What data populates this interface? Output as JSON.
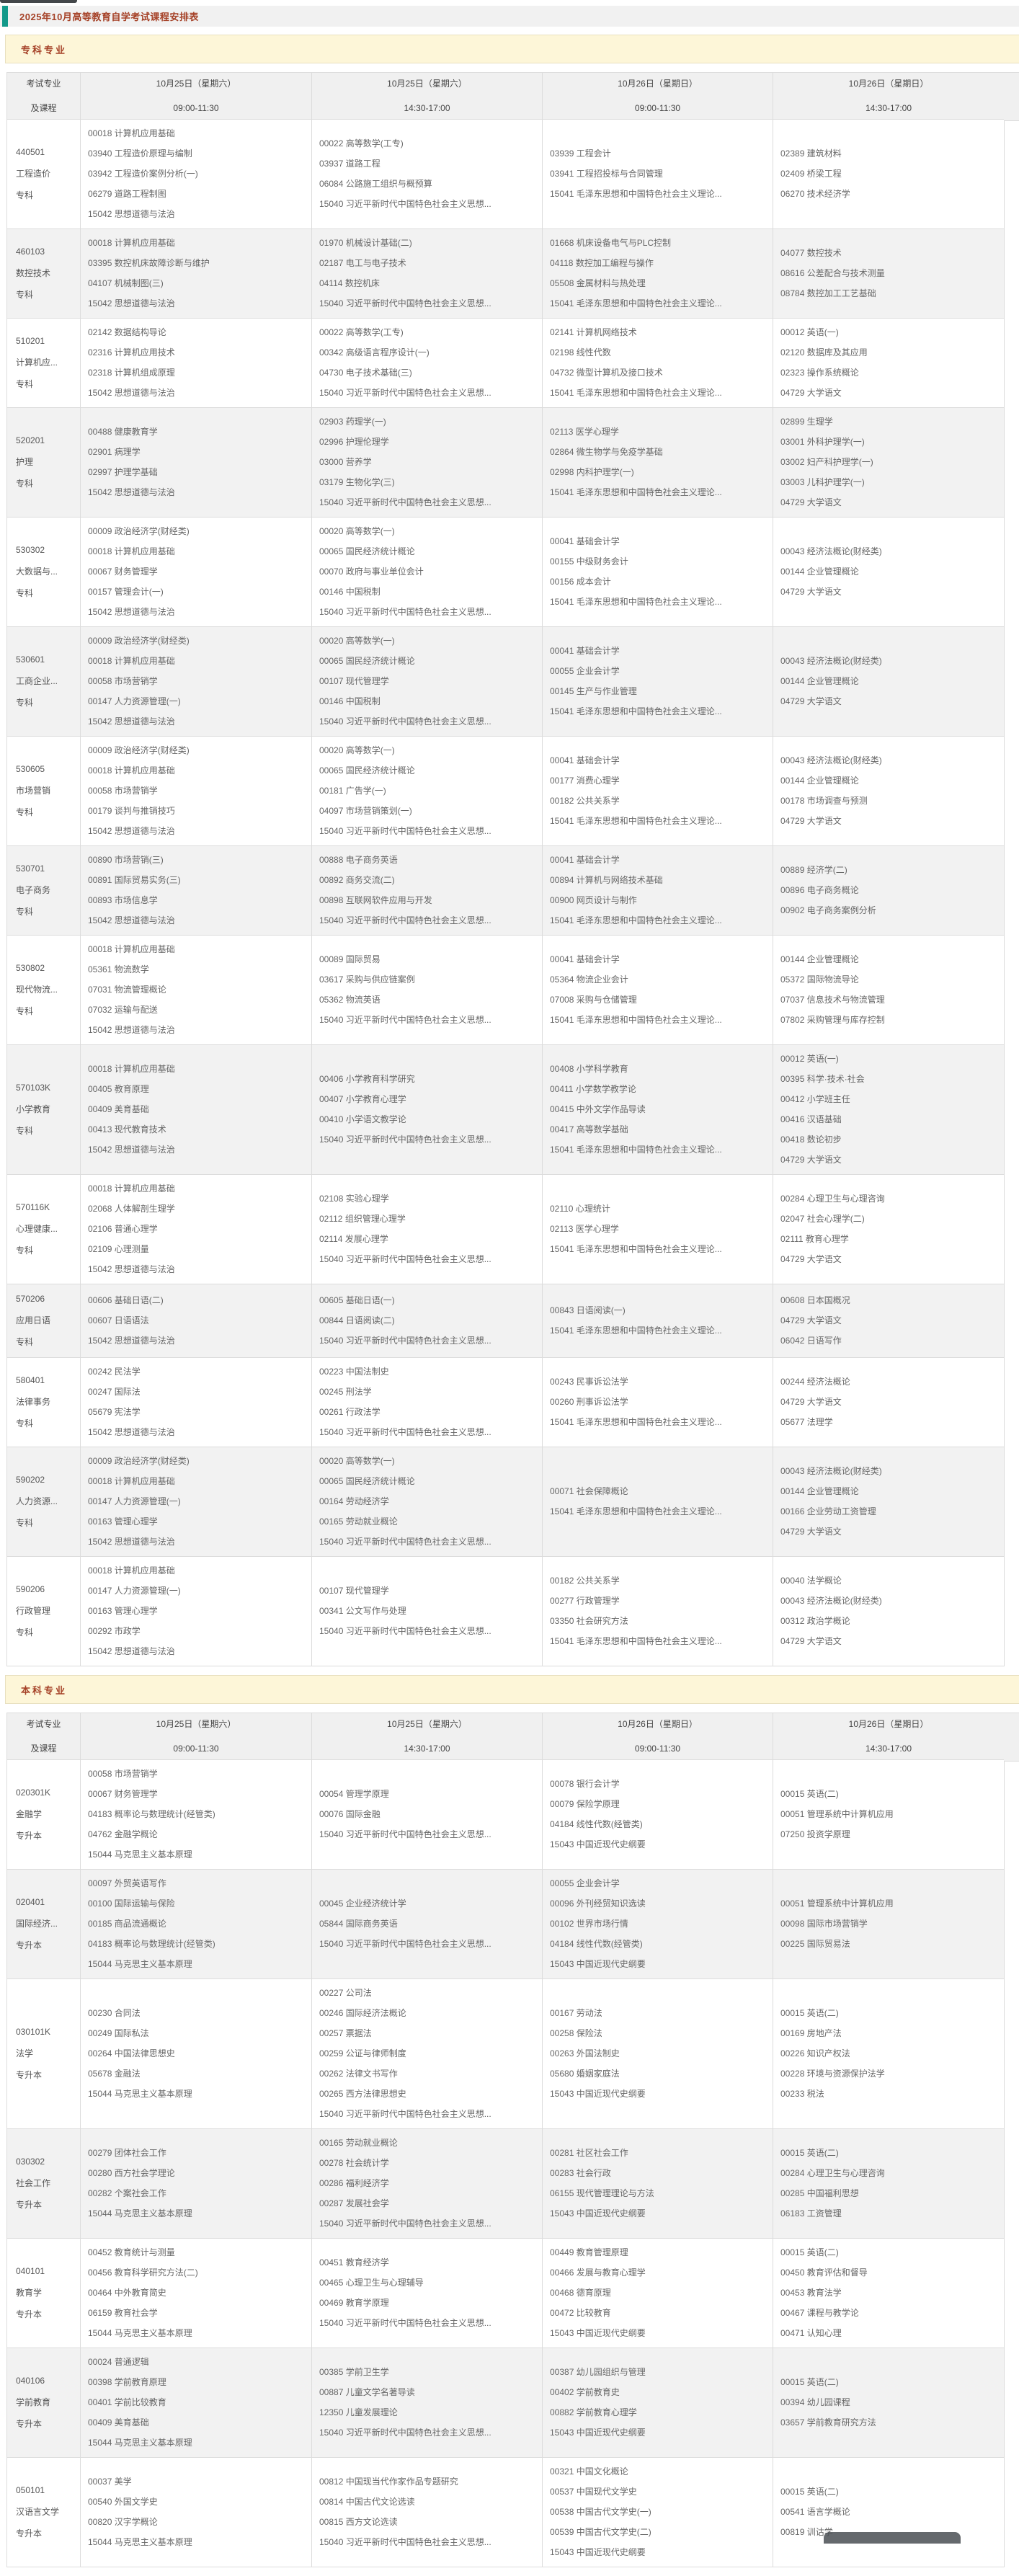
{
  "page": {
    "title": "2025年10月高等教育自学考试课程安排表"
  },
  "colors": {
    "accent_teal": "#12998a",
    "title_red": "#a54127",
    "section_bar_bg": "#fdf6d8",
    "table_header_bg": "#f0f0f0",
    "row_stripe_bg": "#f2f2f2"
  },
  "table_header": {
    "col1_line1": "考试专业",
    "col1_line2": "及课程",
    "sessions": [
      {
        "date": "10月25日（星期六）",
        "time": "09:00-11:30"
      },
      {
        "date": "10月25日（星期六）",
        "time": "14:30-17:00"
      },
      {
        "date": "10月26日（星期日）",
        "time": "09:00-11:30"
      },
      {
        "date": "10月26日（星期日）",
        "time": "14:30-17:00"
      }
    ]
  },
  "sections": [
    {
      "label": "专科专业",
      "rows": [
        {
          "code": "440501",
          "major": "工程造价",
          "level": "专科",
          "sessions": [
            [
              "00018 计算机应用基础",
              "03940 工程造价原理与编制",
              "03942 工程造价案例分析(一)",
              "06279 道路工程制图",
              "15042 思想道德与法治"
            ],
            [
              "00022 高等数学(工专)",
              "03937 道路工程",
              "06084 公路施工组织与概预算",
              "15040 习近平新时代中国特色社会主义思想..."
            ],
            [
              "03939 工程会计",
              "03941 工程招投标与合同管理",
              "15041 毛泽东思想和中国特色社会主义理论..."
            ],
            [
              "02389 建筑材料",
              "02409 桥梁工程",
              "06270 技术经济学"
            ]
          ]
        },
        {
          "code": "460103",
          "major": "数控技术",
          "level": "专科",
          "sessions": [
            [
              "00018 计算机应用基础",
              "03395 数控机床故障诊断与维护",
              "04107 机械制图(三)",
              "15042 思想道德与法治"
            ],
            [
              "01970 机械设计基础(二)",
              "02187 电工与电子技术",
              "04114 数控机床",
              "15040 习近平新时代中国特色社会主义思想..."
            ],
            [
              "01668 机床设备电气与PLC控制",
              "04118 数控加工编程与操作",
              "05508 金属材料与热处理",
              "15041 毛泽东思想和中国特色社会主义理论..."
            ],
            [
              "04077 数控技术",
              "08616 公差配合与技术测量",
              "08784 数控加工工艺基础"
            ]
          ]
        },
        {
          "code": "510201",
          "major": "计算机应...",
          "level": "专科",
          "sessions": [
            [
              "02142 数据结构导论",
              "02316 计算机应用技术",
              "02318 计算机组成原理",
              "15042 思想道德与法治"
            ],
            [
              "00022 高等数学(工专)",
              "00342 高级语言程序设计(一)",
              "04730 电子技术基础(三)",
              "15040 习近平新时代中国特色社会主义思想..."
            ],
            [
              "02141 计算机网络技术",
              "02198 线性代数",
              "04732 微型计算机及接口技术",
              "15041 毛泽东思想和中国特色社会主义理论..."
            ],
            [
              "00012 英语(一)",
              "02120 数据库及其应用",
              "02323 操作系统概论",
              "04729 大学语文"
            ]
          ]
        },
        {
          "code": "520201",
          "major": "护理",
          "level": "专科",
          "sessions": [
            [
              "00488 健康教育学",
              "02901 病理学",
              "02997 护理学基础",
              "15042 思想道德与法治"
            ],
            [
              "02903 药理学(一)",
              "02996 护理伦理学",
              "03000 营养学",
              "03179 生物化学(三)",
              "15040 习近平新时代中国特色社会主义思想..."
            ],
            [
              "02113 医学心理学",
              "02864 微生物学与免疫学基础",
              "02998 内科护理学(一)",
              "15041 毛泽东思想和中国特色社会主义理论..."
            ],
            [
              "02899 生理学",
              "03001 外科护理学(一)",
              "03002 妇产科护理学(一)",
              "03003 儿科护理学(一)",
              "04729 大学语文"
            ]
          ]
        },
        {
          "code": "530302",
          "major": "大数据与...",
          "level": "专科",
          "sessions": [
            [
              "00009 政治经济学(财经类)",
              "00018 计算机应用基础",
              "00067 财务管理学",
              "00157 管理会计(一)",
              "15042 思想道德与法治"
            ],
            [
              "00020 高等数学(一)",
              "00065 国民经济统计概论",
              "00070 政府与事业单位会计",
              "00146 中国税制",
              "15040 习近平新时代中国特色社会主义思想..."
            ],
            [
              "00041 基础会计学",
              "00155 中级财务会计",
              "00156 成本会计",
              "15041 毛泽东思想和中国特色社会主义理论..."
            ],
            [
              "00043 经济法概论(财经类)",
              "00144 企业管理概论",
              "04729 大学语文"
            ]
          ]
        },
        {
          "code": "530601",
          "major": "工商企业...",
          "level": "专科",
          "sessions": [
            [
              "00009 政治经济学(财经类)",
              "00018 计算机应用基础",
              "00058 市场营销学",
              "00147 人力资源管理(一)",
              "15042 思想道德与法治"
            ],
            [
              "00020 高等数学(一)",
              "00065 国民经济统计概论",
              "00107 现代管理学",
              "00146 中国税制",
              "15040 习近平新时代中国特色社会主义思想..."
            ],
            [
              "00041 基础会计学",
              "00055 企业会计学",
              "00145 生产与作业管理",
              "15041 毛泽东思想和中国特色社会主义理论..."
            ],
            [
              "00043 经济法概论(财经类)",
              "00144 企业管理概论",
              "04729 大学语文"
            ]
          ]
        },
        {
          "code": "530605",
          "major": "市场营销",
          "level": "专科",
          "sessions": [
            [
              "00009 政治经济学(财经类)",
              "00018 计算机应用基础",
              "00058 市场营销学",
              "00179 谈判与推销技巧",
              "15042 思想道德与法治"
            ],
            [
              "00020 高等数学(一)",
              "00065 国民经济统计概论",
              "00181 广告学(一)",
              "04097 市场营销策划(一)",
              "15040 习近平新时代中国特色社会主义思想..."
            ],
            [
              "00041 基础会计学",
              "00177 消费心理学",
              "00182 公共关系学",
              "15041 毛泽东思想和中国特色社会主义理论..."
            ],
            [
              "00043 经济法概论(财经类)",
              "00144 企业管理概论",
              "00178 市场调查与预测",
              "04729 大学语文"
            ]
          ]
        },
        {
          "code": "530701",
          "major": "电子商务",
          "level": "专科",
          "sessions": [
            [
              "00890 市场营销(三)",
              "00891 国际贸易实务(三)",
              "00893 市场信息学",
              "15042 思想道德与法治"
            ],
            [
              "00888 电子商务英语",
              "00892 商务交流(二)",
              "00898 互联网软件应用与开发",
              "15040 习近平新时代中国特色社会主义思想..."
            ],
            [
              "00041 基础会计学",
              "00894 计算机与网络技术基础",
              "00900 网页设计与制作",
              "15041 毛泽东思想和中国特色社会主义理论..."
            ],
            [
              "00889 经济学(二)",
              "00896 电子商务概论",
              "00902 电子商务案例分析"
            ]
          ]
        },
        {
          "code": "530802",
          "major": "现代物流...",
          "level": "专科",
          "sessions": [
            [
              "00018 计算机应用基础",
              "05361 物流数学",
              "07031 物流管理概论",
              "07032 运输与配送",
              "15042 思想道德与法治"
            ],
            [
              "00089 国际贸易",
              "03617 采购与供应链案例",
              "05362 物流英语",
              "15040 习近平新时代中国特色社会主义思想..."
            ],
            [
              "00041 基础会计学",
              "05364 物流企业会计",
              "07008 采购与仓储管理",
              "15041 毛泽东思想和中国特色社会主义理论..."
            ],
            [
              "00144 企业管理概论",
              "05372 国际物流导论",
              "07037 信息技术与物流管理",
              "07802 采购管理与库存控制"
            ]
          ]
        },
        {
          "code": "570103K",
          "major": "小学教育",
          "level": "专科",
          "sessions": [
            [
              "00018 计算机应用基础",
              "00405 教育原理",
              "00409 美育基础",
              "00413 现代教育技术",
              "15042 思想道德与法治"
            ],
            [
              "00406 小学教育科学研究",
              "00407 小学教育心理学",
              "00410 小学语文教学论",
              "15040 习近平新时代中国特色社会主义思想..."
            ],
            [
              "00408 小学科学教育",
              "00411 小学数学教学论",
              "00415 中外文学作品导读",
              "00417 高等数学基础",
              "15041 毛泽东思想和中国特色社会主义理论..."
            ],
            [
              "00012 英语(一)",
              "00395 科学·技术·社会",
              "00412 小学班主任",
              "00416 汉语基础",
              "00418 数论初步",
              "04729 大学语文"
            ]
          ]
        },
        {
          "code": "570116K",
          "major": "心理健康...",
          "level": "专科",
          "sessions": [
            [
              "00018 计算机应用基础",
              "02068 人体解剖生理学",
              "02106 普通心理学",
              "02109 心理测量",
              "15042 思想道德与法治"
            ],
            [
              "02108 实验心理学",
              "02112 组织管理心理学",
              "02114 发展心理学",
              "15040 习近平新时代中国特色社会主义思想..."
            ],
            [
              "02110 心理统计",
              "02113 医学心理学",
              "15041 毛泽东思想和中国特色社会主义理论..."
            ],
            [
              "00284 心理卫生与心理咨询",
              "02047 社会心理学(二)",
              "02111 教育心理学",
              "04729 大学语文"
            ]
          ]
        },
        {
          "code": "570206",
          "major": "应用日语",
          "level": "专科",
          "sessions": [
            [
              "00606 基础日语(二)",
              "00607 日语语法",
              "15042 思想道德与法治"
            ],
            [
              "00605 基础日语(一)",
              "00844 日语阅读(二)",
              "15040 习近平新时代中国特色社会主义思想..."
            ],
            [
              "00843 日语阅读(一)",
              "15041 毛泽东思想和中国特色社会主义理论..."
            ],
            [
              "00608 日本国概况",
              "04729 大学语文",
              "06042 日语写作"
            ]
          ]
        },
        {
          "code": "580401",
          "major": "法律事务",
          "level": "专科",
          "sessions": [
            [
              "00242 民法学",
              "00247 国际法",
              "05679 宪法学",
              "15042 思想道德与法治"
            ],
            [
              "00223 中国法制史",
              "00245 刑法学",
              "00261 行政法学",
              "15040 习近平新时代中国特色社会主义思想..."
            ],
            [
              "00243 民事诉讼法学",
              "00260 刑事诉讼法学",
              "15041 毛泽东思想和中国特色社会主义理论..."
            ],
            [
              "00244 经济法概论",
              "04729 大学语文",
              "05677 法理学"
            ]
          ]
        },
        {
          "code": "590202",
          "major": "人力资源...",
          "level": "专科",
          "sessions": [
            [
              "00009 政治经济学(财经类)",
              "00018 计算机应用基础",
              "00147 人力资源管理(一)",
              "00163 管理心理学",
              "15042 思想道德与法治"
            ],
            [
              "00020 高等数学(一)",
              "00065 国民经济统计概论",
              "00164 劳动经济学",
              "00165 劳动就业概论",
              "15040 习近平新时代中国特色社会主义思想..."
            ],
            [
              "00071 社会保障概论",
              "15041 毛泽东思想和中国特色社会主义理论..."
            ],
            [
              "00043 经济法概论(财经类)",
              "00144 企业管理概论",
              "00166 企业劳动工资管理",
              "04729 大学语文"
            ]
          ]
        },
        {
          "code": "590206",
          "major": "行政管理",
          "level": "专科",
          "sessions": [
            [
              "00018 计算机应用基础",
              "00147 人力资源管理(一)",
              "00163 管理心理学",
              "00292 市政学",
              "15042 思想道德与法治"
            ],
            [
              "00107 现代管理学",
              "00341 公文写作与处理",
              "15040 习近平新时代中国特色社会主义思想..."
            ],
            [
              "00182 公共关系学",
              "00277 行政管理学",
              "03350 社会研究方法",
              "15041 毛泽东思想和中国特色社会主义理论..."
            ],
            [
              "00040 法学概论",
              "00043 经济法概论(财经类)",
              "00312 政治学概论",
              "04729 大学语文"
            ]
          ]
        }
      ]
    },
    {
      "label": "本科专业",
      "rows": [
        {
          "code": "020301K",
          "major": "金融学",
          "level": "专升本",
          "sessions": [
            [
              "00058 市场营销学",
              "00067 财务管理学",
              "04183 概率论与数理统计(经管类)",
              "04762 金融学概论",
              "15044 马克思主义基本原理"
            ],
            [
              "00054 管理学原理",
              "00076 国际金融",
              "15040 习近平新时代中国特色社会主义思想..."
            ],
            [
              "00078 银行会计学",
              "00079 保险学原理",
              "04184 线性代数(经管类)",
              "15043 中国近现代史纲要"
            ],
            [
              "00015 英语(二)",
              "00051 管理系统中计算机应用",
              "07250 投资学原理"
            ]
          ]
        },
        {
          "code": "020401",
          "major": "国际经济...",
          "level": "专升本",
          "sessions": [
            [
              "00097 外贸英语写作",
              "00100 国际运输与保险",
              "00185 商品流通概论",
              "04183 概率论与数理统计(经管类)",
              "15044 马克思主义基本原理"
            ],
            [
              "00045 企业经济统计学",
              "05844 国际商务英语",
              "15040 习近平新时代中国特色社会主义思想..."
            ],
            [
              "00055 企业会计学",
              "00096 外刊经贸知识选读",
              "00102 世界市场行情",
              "04184 线性代数(经管类)",
              "15043 中国近现代史纲要"
            ],
            [
              "00051 管理系统中计算机应用",
              "00098 国际市场营销学",
              "00225 国际贸易法"
            ]
          ]
        },
        {
          "code": "030101K",
          "major": "法学",
          "level": "专升本",
          "sessions": [
            [
              "00230 合同法",
              "00249 国际私法",
              "00264 中国法律思想史",
              "05678 金融法",
              "15044 马克思主义基本原理"
            ],
            [
              "00227 公司法",
              "00246 国际经济法概论",
              "00257 票据法",
              "00259 公证与律师制度",
              "00262 法律文书写作",
              "00265 西方法律思想史",
              "15040 习近平新时代中国特色社会主义思想..."
            ],
            [
              "00167 劳动法",
              "00258 保险法",
              "00263 外国法制史",
              "05680 婚姻家庭法",
              "15043 中国近现代史纲要"
            ],
            [
              "00015 英语(二)",
              "00169 房地产法",
              "00226 知识产权法",
              "00228 环境与资源保护法学",
              "00233 税法"
            ]
          ]
        },
        {
          "code": "030302",
          "major": "社会工作",
          "level": "专升本",
          "sessions": [
            [
              "00279 团体社会工作",
              "00280 西方社会学理论",
              "00282 个案社会工作",
              "15044 马克思主义基本原理"
            ],
            [
              "00165 劳动就业概论",
              "00278 社会统计学",
              "00286 福利经济学",
              "00287 发展社会学",
              "15040 习近平新时代中国特色社会主义思想..."
            ],
            [
              "00281 社区社会工作",
              "00283 社会行政",
              "06155 现代管理理论与方法",
              "15043 中国近现代史纲要"
            ],
            [
              "00015 英语(二)",
              "00284 心理卫生与心理咨询",
              "00285 中国福利思想",
              "06183 工资管理"
            ]
          ]
        },
        {
          "code": "040101",
          "major": "教育学",
          "level": "专升本",
          "sessions": [
            [
              "00452 教育统计与测量",
              "00456 教育科学研究方法(二)",
              "00464 中外教育简史",
              "06159 教育社会学",
              "15044 马克思主义基本原理"
            ],
            [
              "00451 教育经济学",
              "00465 心理卫生与心理辅导",
              "00469 教育学原理",
              "15040 习近平新时代中国特色社会主义思想..."
            ],
            [
              "00449 教育管理原理",
              "00466 发展与教育心理学",
              "00468 德育原理",
              "00472 比较教育",
              "15043 中国近现代史纲要"
            ],
            [
              "00015 英语(二)",
              "00450 教育评估和督导",
              "00453 教育法学",
              "00467 课程与教学论",
              "00471 认知心理"
            ]
          ]
        },
        {
          "code": "040106",
          "major": "学前教育",
          "level": "专升本",
          "sessions": [
            [
              "00024 普通逻辑",
              "00398 学前教育原理",
              "00401 学前比较教育",
              "00409 美育基础",
              "15044 马克思主义基本原理"
            ],
            [
              "00385 学前卫生学",
              "00887 儿童文学名著导读",
              "12350 儿童发展理论",
              "15040 习近平新时代中国特色社会主义思想..."
            ],
            [
              "00387 幼儿园组织与管理",
              "00402 学前教育史",
              "00882 学前教育心理学",
              "15043 中国近现代史纲要"
            ],
            [
              "00015 英语(二)",
              "00394 幼儿园课程",
              "03657 学前教育研究方法"
            ]
          ]
        },
        {
          "code": "050101",
          "major": "汉语言文学",
          "level": "专升本",
          "sessions": [
            [
              "00037 美学",
              "00540 外国文学史",
              "00820 汉字学概论",
              "15044 马克思主义基本原理"
            ],
            [
              "00812 中国现当代作家作品专题研究",
              "00814 中国古代文论选读",
              "00815 西方文论选读",
              "15040 习近平新时代中国特色社会主义思想..."
            ],
            [
              "00321 中国文化概论",
              "00537 中国现代文学史",
              "00538 中国古代文学史(一)",
              "00539 中国古代文学史(二)",
              "15043 中国近现代史纲要"
            ],
            [
              "00015 英语(二)",
              "00541 语言学概论",
              "00819 训诂学"
            ]
          ]
        }
      ]
    }
  ]
}
